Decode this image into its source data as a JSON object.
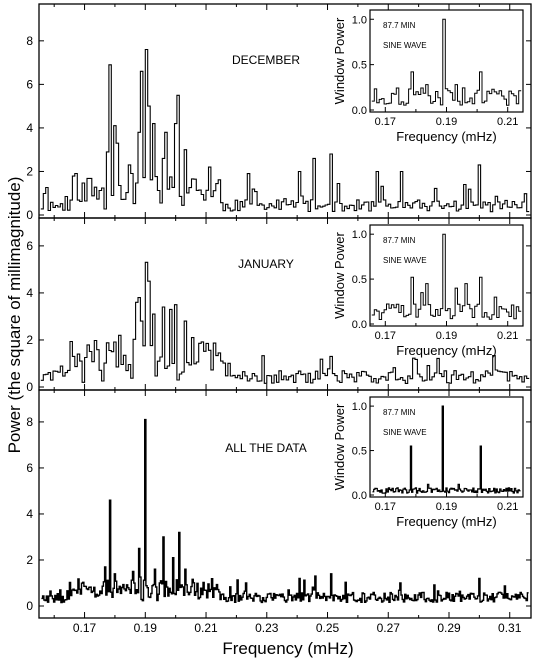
{
  "chart_data": {
    "type": "bar",
    "ylabel": "Power (the square of millimagnitude)",
    "xlabel": "Frequency (mHz)",
    "x_ticks": [
      "0.17",
      "0.19",
      "0.21",
      "0.23",
      "0.25",
      "0.27",
      "0.29",
      "0.31"
    ],
    "xlim": [
      0.155,
      0.317
    ],
    "panels": [
      {
        "title": "DECEMBER",
        "ylim": [
          0,
          9.6
        ],
        "y_ticks": [
          "0",
          "2",
          "4",
          "6",
          "8"
        ],
        "peaks": [
          {
            "x": 0.1785,
            "y": 6.9
          },
          {
            "x": 0.18,
            "y": 4.1
          },
          {
            "x": 0.1775,
            "y": 2.9
          },
          {
            "x": 0.181,
            "y": 3.3
          },
          {
            "x": 0.188,
            "y": 3.8
          },
          {
            "x": 0.189,
            "y": 6.6
          },
          {
            "x": 0.19,
            "y": 7.6
          },
          {
            "x": 0.1915,
            "y": 5.0
          },
          {
            "x": 0.193,
            "y": 4.2
          },
          {
            "x": 0.197,
            "y": 3.8
          },
          {
            "x": 0.2,
            "y": 4.2
          },
          {
            "x": 0.201,
            "y": 5.5
          },
          {
            "x": 0.2035,
            "y": 3.0
          },
          {
            "x": 0.185,
            "y": 2.3
          },
          {
            "x": 0.196,
            "y": 2.6
          },
          {
            "x": 0.211,
            "y": 2.2
          },
          {
            "x": 0.224,
            "y": 1.9
          },
          {
            "x": 0.241,
            "y": 2.0
          },
          {
            "x": 0.246,
            "y": 2.6
          },
          {
            "x": 0.251,
            "y": 2.8
          },
          {
            "x": 0.266,
            "y": 2.0
          },
          {
            "x": 0.274,
            "y": 2.0
          },
          {
            "x": 0.295,
            "y": 1.4
          },
          {
            "x": 0.3,
            "y": 2.3
          }
        ],
        "inset": {
          "ylabel": "Window Power",
          "xlabel": "Frequency (mHz)",
          "annotation_1": "87.7 MIN",
          "annotation_2": "SINE WAVE",
          "x_ticks": [
            "0.17",
            "0.19",
            "0.21"
          ],
          "y_ticks": [
            "0.0",
            "0.5",
            "1.0"
          ],
          "xlim": [
            0.165,
            0.215
          ],
          "ylim": [
            0,
            1.08
          ],
          "peaks": [
            {
              "x": 0.1785,
              "y": 0.42
            },
            {
              "x": 0.189,
              "y": 1.0
            },
            {
              "x": 0.201,
              "y": 0.42
            },
            {
              "x": 0.184,
              "y": 0.28
            },
            {
              "x": 0.1935,
              "y": 0.28
            },
            {
              "x": 0.206,
              "y": 0.2
            },
            {
              "x": 0.174,
              "y": 0.15
            },
            {
              "x": 0.2095,
              "y": 0.12
            }
          ]
        }
      },
      {
        "title": "JANUARY",
        "ylim": [
          0,
          7.1
        ],
        "y_ticks": [
          "0",
          "2",
          "4",
          "6"
        ],
        "peaks": [
          {
            "x": 0.187,
            "y": 3.6
          },
          {
            "x": 0.188,
            "y": 3.8
          },
          {
            "x": 0.189,
            "y": 2.8
          },
          {
            "x": 0.19,
            "y": 5.3
          },
          {
            "x": 0.191,
            "y": 4.5
          },
          {
            "x": 0.193,
            "y": 3.1
          },
          {
            "x": 0.196,
            "y": 3.4
          },
          {
            "x": 0.198,
            "y": 3.3
          },
          {
            "x": 0.2,
            "y": 3.5
          },
          {
            "x": 0.203,
            "y": 2.8
          },
          {
            "x": 0.206,
            "y": 2.1
          },
          {
            "x": 0.182,
            "y": 2.2
          },
          {
            "x": 0.179,
            "y": 1.5
          },
          {
            "x": 0.209,
            "y": 1.5
          },
          {
            "x": 0.215,
            "y": 1.1
          },
          {
            "x": 0.166,
            "y": 1.3
          },
          {
            "x": 0.169,
            "y": 1.1
          }
        ],
        "inset": {
          "ylabel": "Window Power",
          "xlabel": "Frequency (mHz)",
          "annotation_1": "87.7 MIN",
          "annotation_2": "SINE WAVE",
          "x_ticks": [
            "0.17",
            "0.19",
            "0.21"
          ],
          "y_ticks": [
            "0.0",
            "0.5",
            "1.0"
          ],
          "xlim": [
            0.165,
            0.215
          ],
          "ylim": [
            0,
            1.08
          ],
          "peaks": [
            {
              "x": 0.1785,
              "y": 0.52
            },
            {
              "x": 0.189,
              "y": 1.0
            },
            {
              "x": 0.201,
              "y": 0.52
            },
            {
              "x": 0.184,
              "y": 0.45
            },
            {
              "x": 0.1935,
              "y": 0.4
            },
            {
              "x": 0.196,
              "y": 0.45
            },
            {
              "x": 0.182,
              "y": 0.35
            },
            {
              "x": 0.206,
              "y": 0.3
            },
            {
              "x": 0.174,
              "y": 0.22
            }
          ]
        }
      },
      {
        "title": "ALL THE DATA",
        "ylim": [
          0,
          9.3
        ],
        "y_ticks": [
          "0",
          "2",
          "4",
          "6",
          "8"
        ],
        "peaks": [
          {
            "x": 0.1785,
            "y": 4.6
          },
          {
            "x": 0.19,
            "y": 8.1
          },
          {
            "x": 0.201,
            "y": 3.2
          },
          {
            "x": 0.196,
            "y": 3.0
          },
          {
            "x": 0.188,
            "y": 2.5
          },
          {
            "x": 0.177,
            "y": 1.7
          },
          {
            "x": 0.18,
            "y": 1.4
          },
          {
            "x": 0.193,
            "y": 1.6
          },
          {
            "x": 0.199,
            "y": 2.1
          },
          {
            "x": 0.186,
            "y": 1.5
          },
          {
            "x": 0.203,
            "y": 1.6
          },
          {
            "x": 0.223,
            "y": 1.0
          },
          {
            "x": 0.241,
            "y": 1.2
          },
          {
            "x": 0.246,
            "y": 1.3
          },
          {
            "x": 0.251,
            "y": 1.4
          },
          {
            "x": 0.274,
            "y": 1.0
          },
          {
            "x": 0.3,
            "y": 1.2
          }
        ],
        "inset": {
          "ylabel": "Window Power",
          "xlabel": "Frequency (mHz)",
          "annotation_1": "87.7 MIN",
          "annotation_2": "SINE WAVE",
          "x_ticks": [
            "0.17",
            "0.19",
            "0.21"
          ],
          "y_ticks": [
            "0.0",
            "0.5",
            "1.0"
          ],
          "xlim": [
            0.165,
            0.215
          ],
          "ylim": [
            0,
            1.08
          ],
          "peaks": [
            {
              "x": 0.1785,
              "y": 0.55
            },
            {
              "x": 0.189,
              "y": 1.0
            },
            {
              "x": 0.201,
              "y": 0.55
            },
            {
              "x": 0.184,
              "y": 0.12
            },
            {
              "x": 0.194,
              "y": 0.12
            },
            {
              "x": 0.174,
              "y": 0.08
            }
          ]
        }
      }
    ]
  }
}
